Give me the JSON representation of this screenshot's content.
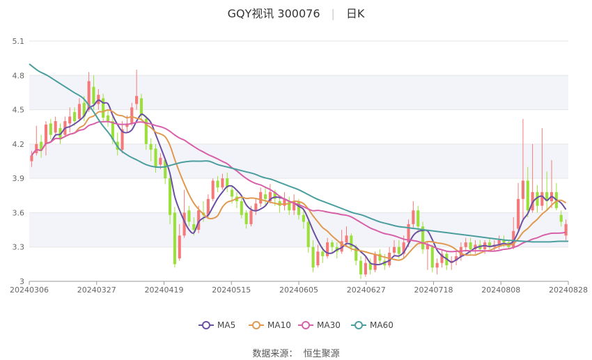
{
  "header": {
    "name": "GQY视讯 300076",
    "period": "日K"
  },
  "source": {
    "label": "数据来源：",
    "value": "恒生聚源"
  },
  "colors": {
    "up": "#f47a7a",
    "down": "#9be03a",
    "ma5": "#6b4fa3",
    "ma10": "#e09a50",
    "ma30": "#d860a8",
    "ma60": "#4b9e9e",
    "band": "#f3f4f9",
    "grid": "#e6e6e6"
  },
  "chart_data": {
    "type": "candlestick",
    "ylim": [
      3.0,
      5.1
    ],
    "y_ticks": [
      "3",
      "3.3",
      "3.6",
      "3.9",
      "4.2",
      "4.5",
      "4.8",
      "5.1"
    ],
    "x_ticks": [
      "20240306",
      "20240327",
      "20240419",
      "20240515",
      "20240605",
      "20240627",
      "20240718",
      "20240808",
      "20240828"
    ],
    "legend": [
      "MA5",
      "MA10",
      "MA30",
      "MA60"
    ],
    "candles": [
      [
        4.05,
        4.1,
        4.0,
        4.14
      ],
      [
        4.12,
        4.2,
        4.1,
        4.36
      ],
      [
        4.22,
        4.14,
        4.08,
        4.28
      ],
      [
        4.2,
        4.37,
        4.1,
        4.4
      ],
      [
        4.38,
        4.28,
        4.24,
        4.42
      ],
      [
        4.3,
        4.4,
        4.27,
        4.44
      ],
      [
        4.34,
        4.24,
        4.2,
        4.38
      ],
      [
        4.28,
        4.4,
        4.26,
        4.44
      ],
      [
        4.38,
        4.44,
        4.3,
        4.52
      ],
      [
        4.48,
        4.4,
        4.36,
        4.52
      ],
      [
        4.42,
        4.55,
        4.4,
        4.6
      ],
      [
        4.56,
        4.44,
        4.4,
        4.62
      ],
      [
        4.5,
        4.75,
        4.48,
        4.83
      ],
      [
        4.7,
        4.55,
        4.5,
        4.8
      ],
      [
        4.55,
        4.63,
        4.5,
        4.68
      ],
      [
        4.6,
        4.43,
        4.4,
        4.64
      ],
      [
        4.45,
        4.4,
        4.35,
        4.5
      ],
      [
        4.4,
        4.24,
        4.2,
        4.44
      ],
      [
        4.22,
        4.15,
        4.1,
        4.3
      ],
      [
        4.15,
        4.33,
        4.12,
        4.4
      ],
      [
        4.35,
        4.38,
        4.3,
        4.45
      ],
      [
        4.38,
        4.52,
        4.36,
        4.56
      ],
      [
        4.55,
        4.62,
        4.5,
        4.85
      ],
      [
        4.6,
        4.45,
        4.4,
        4.64
      ],
      [
        4.42,
        4.2,
        4.15,
        4.45
      ],
      [
        4.2,
        4.15,
        4.05,
        4.25
      ],
      [
        4.16,
        4.0,
        3.95,
        4.2
      ],
      [
        4.02,
        4.08,
        3.98,
        4.12
      ],
      [
        4.06,
        3.9,
        3.85,
        4.08
      ],
      [
        3.9,
        3.58,
        3.5,
        3.95
      ],
      [
        3.6,
        3.15,
        3.12,
        3.65
      ],
      [
        3.2,
        3.4,
        3.18,
        3.5
      ],
      [
        3.4,
        3.6,
        3.38,
        3.8
      ],
      [
        3.62,
        3.52,
        3.48,
        3.66
      ],
      [
        3.5,
        3.45,
        3.4,
        3.56
      ],
      [
        3.45,
        3.62,
        3.42,
        3.66
      ],
      [
        3.6,
        3.58,
        3.52,
        3.7
      ],
      [
        3.58,
        3.72,
        3.55,
        3.76
      ],
      [
        3.72,
        3.88,
        3.7,
        3.9
      ],
      [
        3.88,
        3.82,
        3.78,
        3.92
      ],
      [
        3.82,
        3.9,
        3.8,
        3.94
      ],
      [
        3.9,
        3.82,
        3.78,
        3.95
      ],
      [
        3.8,
        3.74,
        3.68,
        3.84
      ],
      [
        3.74,
        3.7,
        3.64,
        3.78
      ],
      [
        3.7,
        3.58,
        3.55,
        3.74
      ],
      [
        3.6,
        3.5,
        3.46,
        3.62
      ],
      [
        3.5,
        3.62,
        3.48,
        3.66
      ],
      [
        3.62,
        3.68,
        3.58,
        3.72
      ],
      [
        3.68,
        3.78,
        3.65,
        3.82
      ],
      [
        3.76,
        3.72,
        3.66,
        3.82
      ],
      [
        3.7,
        3.78,
        3.68,
        3.85
      ],
      [
        3.78,
        3.72,
        3.66,
        3.8
      ],
      [
        3.7,
        3.66,
        3.6,
        3.74
      ],
      [
        3.66,
        3.72,
        3.62,
        3.78
      ],
      [
        3.7,
        3.62,
        3.58,
        3.74
      ],
      [
        3.62,
        3.7,
        3.58,
        3.76
      ],
      [
        3.7,
        3.58,
        3.54,
        3.72
      ],
      [
        3.58,
        3.52,
        3.46,
        3.64
      ],
      [
        3.52,
        3.3,
        3.25,
        3.55
      ],
      [
        3.3,
        3.12,
        3.08,
        3.36
      ],
      [
        3.14,
        3.26,
        3.12,
        3.32
      ],
      [
        3.26,
        3.22,
        3.16,
        3.3
      ],
      [
        3.22,
        3.34,
        3.2,
        3.38
      ],
      [
        3.34,
        3.3,
        3.24,
        3.36
      ],
      [
        3.3,
        3.26,
        3.2,
        3.34
      ],
      [
        3.26,
        3.35,
        3.24,
        3.45
      ],
      [
        3.34,
        3.4,
        3.3,
        3.48
      ],
      [
        3.4,
        3.3,
        3.26,
        3.42
      ],
      [
        3.3,
        3.18,
        3.14,
        3.32
      ],
      [
        3.18,
        3.06,
        3.02,
        3.22
      ],
      [
        3.06,
        3.16,
        3.04,
        3.22
      ],
      [
        3.16,
        3.1,
        3.06,
        3.2
      ],
      [
        3.1,
        3.24,
        3.08,
        3.26
      ],
      [
        3.24,
        3.18,
        3.14,
        3.28
      ],
      [
        3.18,
        3.14,
        3.1,
        3.24
      ],
      [
        3.14,
        3.25,
        3.12,
        3.3
      ],
      [
        3.25,
        3.3,
        3.22,
        3.36
      ],
      [
        3.3,
        3.24,
        3.2,
        3.36
      ],
      [
        3.24,
        3.34,
        3.2,
        3.4
      ],
      [
        3.34,
        3.5,
        3.3,
        3.54
      ],
      [
        3.5,
        3.62,
        3.46,
        3.7
      ],
      [
        3.62,
        3.48,
        3.42,
        3.66
      ],
      [
        3.48,
        3.28,
        3.24,
        3.52
      ],
      [
        3.28,
        3.32,
        3.1,
        3.35
      ],
      [
        3.3,
        3.12,
        3.08,
        3.32
      ],
      [
        3.12,
        3.16,
        3.06,
        3.2
      ],
      [
        3.16,
        3.24,
        3.12,
        3.28
      ],
      [
        3.24,
        3.14,
        3.1,
        3.26
      ],
      [
        3.16,
        3.18,
        3.1,
        3.22
      ],
      [
        3.18,
        3.22,
        3.14,
        3.26
      ],
      [
        3.22,
        3.3,
        3.18,
        3.34
      ],
      [
        3.3,
        3.34,
        3.26,
        3.38
      ],
      [
        3.34,
        3.28,
        3.24,
        3.38
      ],
      [
        3.28,
        3.32,
        3.24,
        3.36
      ],
      [
        3.32,
        3.28,
        3.26,
        3.36
      ],
      [
        3.28,
        3.34,
        3.24,
        3.36
      ],
      [
        3.34,
        3.3,
        3.28,
        3.38
      ],
      [
        3.3,
        3.32,
        3.26,
        3.36
      ],
      [
        3.32,
        3.36,
        3.28,
        3.4
      ],
      [
        3.36,
        3.34,
        3.3,
        3.4
      ],
      [
        3.34,
        3.3,
        3.28,
        3.36
      ],
      [
        3.3,
        3.44,
        3.28,
        3.56
      ],
      [
        3.46,
        3.72,
        3.44,
        3.86
      ],
      [
        3.72,
        3.88,
        3.52,
        4.42
      ],
      [
        3.88,
        3.62,
        3.56,
        4.0
      ],
      [
        3.62,
        3.78,
        3.6,
        4.2
      ],
      [
        3.78,
        3.66,
        3.6,
        3.84
      ],
      [
        3.66,
        3.78,
        3.62,
        4.34
      ],
      [
        3.78,
        3.7,
        3.62,
        3.96
      ],
      [
        3.7,
        3.78,
        3.64,
        4.06
      ],
      [
        3.78,
        3.64,
        3.62,
        3.86
      ],
      [
        3.58,
        3.52,
        3.48,
        3.62
      ],
      [
        3.4,
        3.5,
        3.36,
        3.54
      ]
    ],
    "ma60": [
      4.9,
      4.84,
      4.8,
      4.75,
      4.7,
      4.65,
      4.6,
      4.5,
      4.38,
      4.28,
      4.16,
      4.1,
      4.06,
      4.02,
      4.0,
      4.0,
      4.02,
      4.04,
      4.05,
      4.05,
      4.05,
      4.02,
      4.0,
      3.98,
      3.96,
      3.94,
      3.91,
      3.89,
      3.86,
      3.83,
      3.8,
      3.76,
      3.72,
      3.69,
      3.66,
      3.63,
      3.6,
      3.58,
      3.55,
      3.52,
      3.5,
      3.48,
      3.47,
      3.46,
      3.45,
      3.44,
      3.43,
      3.42,
      3.41,
      3.4,
      3.39,
      3.38,
      3.37,
      3.36,
      3.355,
      3.35,
      3.345,
      3.345,
      3.345,
      3.35,
      3.35
    ]
  }
}
